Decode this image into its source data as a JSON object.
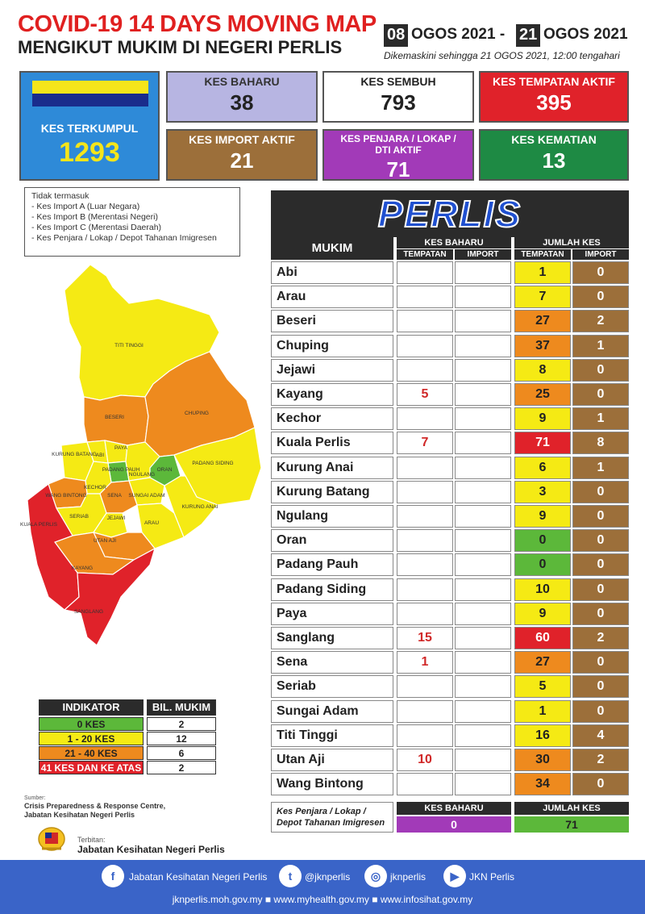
{
  "header": {
    "title_line1": "COVID-19 14 DAYS MOVING MAP",
    "title_line2": "MENGIKUT MUKIM DI NEGERI PERLIS",
    "date_start_day": "08",
    "date_start_rest": "OGOS 2021 -",
    "date_end_day": "21",
    "date_end_rest": "OGOS 2021",
    "updated": "Dikemaskini sehingga  21 OGOS  2021, 12:00 tengahari"
  },
  "stats": {
    "kes_terkumpul": {
      "label": "KES TERKUMPUL",
      "value": "1293"
    },
    "kes_baharu": {
      "label": "KES BAHARU",
      "value": "38"
    },
    "kes_sembuh": {
      "label": "KES SEMBUH",
      "value": "793"
    },
    "kes_tempatan_aktif": {
      "label": "KES TEMPATAN AKTIF",
      "value": "395"
    },
    "kes_import_aktif": {
      "label": "KES IMPORT AKTIF",
      "value": "21"
    },
    "kes_penjara": {
      "label": "KES PENJARA / LOKAP / DTI AKTIF",
      "value": "71"
    },
    "kes_kematian": {
      "label": "KES KEMATIAN",
      "value": "13"
    }
  },
  "note": {
    "heading": "Tidak termasuk",
    "items": [
      "- Kes Import A (Luar Negara)",
      "- Kes Import B (Merentasi Negeri)",
      "- Kes Import C (Merentasi Daerah)",
      "- Kes Penjara / Lokap / Depot Tahanan Imigresen"
    ]
  },
  "table": {
    "title": "PERLIS",
    "col_mukim": "MUKIM",
    "col_kes_baharu": "KES BAHARU",
    "col_jumlah_kes": "JUMLAH KES",
    "sub_tempatan": "TEMPATAN",
    "sub_import": "IMPORT",
    "rows": [
      {
        "mukim": "Abi",
        "baharu_tempatan": "",
        "baharu_import": "",
        "jumlah_tempatan": "1",
        "jumlah_import": "0",
        "color": "#f5ea14"
      },
      {
        "mukim": "Arau",
        "baharu_tempatan": "",
        "baharu_import": "",
        "jumlah_tempatan": "7",
        "jumlah_import": "0",
        "color": "#f5ea14"
      },
      {
        "mukim": "Beseri",
        "baharu_tempatan": "",
        "baharu_import": "",
        "jumlah_tempatan": "27",
        "jumlah_import": "2",
        "color": "#ee8a1e"
      },
      {
        "mukim": "Chuping",
        "baharu_tempatan": "",
        "baharu_import": "",
        "jumlah_tempatan": "37",
        "jumlah_import": "1",
        "color": "#ee8a1e"
      },
      {
        "mukim": "Jejawi",
        "baharu_tempatan": "",
        "baharu_import": "",
        "jumlah_tempatan": "8",
        "jumlah_import": "0",
        "color": "#f5ea14"
      },
      {
        "mukim": "Kayang",
        "baharu_tempatan": "5",
        "baharu_import": "",
        "jumlah_tempatan": "25",
        "jumlah_import": "0",
        "color": "#ee8a1e"
      },
      {
        "mukim": "Kechor",
        "baharu_tempatan": "",
        "baharu_import": "",
        "jumlah_tempatan": "9",
        "jumlah_import": "1",
        "color": "#f5ea14"
      },
      {
        "mukim": "Kuala Perlis",
        "baharu_tempatan": "7",
        "baharu_import": "",
        "jumlah_tempatan": "71",
        "jumlah_import": "8",
        "color": "#e0222a"
      },
      {
        "mukim": "Kurung Anai",
        "baharu_tempatan": "",
        "baharu_import": "",
        "jumlah_tempatan": "6",
        "jumlah_import": "1",
        "color": "#f5ea14"
      },
      {
        "mukim": "Kurung Batang",
        "baharu_tempatan": "",
        "baharu_import": "",
        "jumlah_tempatan": "3",
        "jumlah_import": "0",
        "color": "#f5ea14"
      },
      {
        "mukim": "Ngulang",
        "baharu_tempatan": "",
        "baharu_import": "",
        "jumlah_tempatan": "9",
        "jumlah_import": "0",
        "color": "#f5ea14"
      },
      {
        "mukim": "Oran",
        "baharu_tempatan": "",
        "baharu_import": "",
        "jumlah_tempatan": "0",
        "jumlah_import": "0",
        "color": "#5cb83a"
      },
      {
        "mukim": "Padang Pauh",
        "baharu_tempatan": "",
        "baharu_import": "",
        "jumlah_tempatan": "0",
        "jumlah_import": "0",
        "color": "#5cb83a"
      },
      {
        "mukim": "Padang Siding",
        "baharu_tempatan": "",
        "baharu_import": "",
        "jumlah_tempatan": "10",
        "jumlah_import": "0",
        "color": "#f5ea14"
      },
      {
        "mukim": "Paya",
        "baharu_tempatan": "",
        "baharu_import": "",
        "jumlah_tempatan": "9",
        "jumlah_import": "0",
        "color": "#f5ea14"
      },
      {
        "mukim": "Sanglang",
        "baharu_tempatan": "15",
        "baharu_import": "",
        "jumlah_tempatan": "60",
        "jumlah_import": "2",
        "color": "#e0222a"
      },
      {
        "mukim": "Sena",
        "baharu_tempatan": "1",
        "baharu_import": "",
        "jumlah_tempatan": "27",
        "jumlah_import": "0",
        "color": "#ee8a1e"
      },
      {
        "mukim": "Seriab",
        "baharu_tempatan": "",
        "baharu_import": "",
        "jumlah_tempatan": "5",
        "jumlah_import": "0",
        "color": "#f5ea14"
      },
      {
        "mukim": "Sungai Adam",
        "baharu_tempatan": "",
        "baharu_import": "",
        "jumlah_tempatan": "1",
        "jumlah_import": "0",
        "color": "#f5ea14"
      },
      {
        "mukim": "Titi Tinggi",
        "baharu_tempatan": "",
        "baharu_import": "",
        "jumlah_tempatan": "16",
        "jumlah_import": "4",
        "color": "#f5ea14"
      },
      {
        "mukim": "Utan Aji",
        "baharu_tempatan": "10",
        "baharu_import": "",
        "jumlah_tempatan": "30",
        "jumlah_import": "2",
        "color": "#ee8a1e"
      },
      {
        "mukim": "Wang Bintong",
        "baharu_tempatan": "",
        "baharu_import": "",
        "jumlah_tempatan": "34",
        "jumlah_import": "0",
        "color": "#ee8a1e"
      }
    ],
    "penjara_label": "Kes Penjara / Lokap / Depot Tahanan Imigresen",
    "penjara_baharu": "0",
    "penjara_jumlah": "71"
  },
  "map_labels": [
    "TITI TINGGI",
    "BESERI",
    "CHUPING",
    "KURUNG BATANG",
    "ABI",
    "PAYA",
    "PADANG PAUH",
    "NGULANG",
    "ORAN",
    "PADANG SIDING",
    "WANG BINTONG",
    "KECHOR",
    "SENA",
    "SUNGAI ADAM",
    "KURUNG ANAI",
    "SERIAB",
    "JEJAWI",
    "KUALA PERLIS",
    "UTAN AJI",
    "ARAU",
    "KAYANG",
    "SANGLANG"
  ],
  "legend": {
    "col_indikator": "INDIKATOR",
    "col_bil": "BIL. MUKIM",
    "rows": [
      {
        "label": "0 KES",
        "count": "2",
        "color": "#5cb83a"
      },
      {
        "label": "1 - 20 KES",
        "count": "12",
        "color": "#f5ea14"
      },
      {
        "label": "21 - 40 KES",
        "count": "6",
        "color": "#ee8a1e"
      },
      {
        "label": "41 KES DAN KE ATAS",
        "count": "2",
        "color": "#e0222a"
      }
    ]
  },
  "source": {
    "label": "Sumber:",
    "line1": "Crisis Preparedness & Response Centre,",
    "line2": "Jabatan Kesihatan Negeri Perlis"
  },
  "publisher": {
    "label": "Terbitan:",
    "name": "Jabatan Kesihatan Negeri Perlis"
  },
  "footer": {
    "facebook": "Jabatan Kesihatan Negeri Perlis",
    "twitter": "@jknperlis",
    "instagram": "jknperlis",
    "youtube": "JKN Perlis",
    "links": "jknperlis.moh.gov.my ■ www.myhealth.gov.my ■ www.infosihat.gov.my"
  }
}
